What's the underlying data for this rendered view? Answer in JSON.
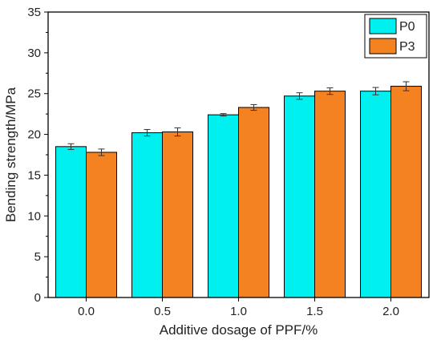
{
  "chart_data": {
    "type": "bar",
    "title": "",
    "xlabel": "Additive dosage of PPF/%",
    "ylabel": "Bending strength/MPa",
    "categories": [
      "0.0",
      "0.5",
      "1.0",
      "1.5",
      "2.0"
    ],
    "ylim": [
      0,
      35
    ],
    "yticks": [
      "0",
      "5",
      "10",
      "15",
      "20",
      "25",
      "30",
      "35"
    ],
    "grid": false,
    "legend_position": "top-right",
    "series": [
      {
        "name": "P0",
        "color": "#00f0f0",
        "values": [
          18.5,
          20.2,
          22.4,
          24.7,
          25.3
        ],
        "errors": [
          0.35,
          0.4,
          0.15,
          0.4,
          0.45
        ]
      },
      {
        "name": "P3",
        "color": "#f58220",
        "values": [
          17.8,
          20.3,
          23.3,
          25.3,
          25.9
        ],
        "errors": [
          0.4,
          0.5,
          0.35,
          0.4,
          0.55
        ]
      }
    ]
  }
}
